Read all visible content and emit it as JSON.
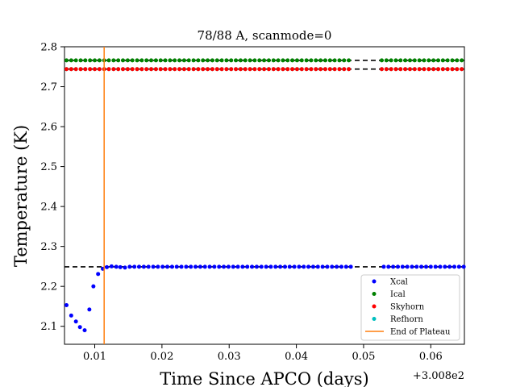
{
  "chart_data": {
    "type": "scatter",
    "title": "78/88 A, scanmode=0",
    "xlabel": "Time Since APCO (days)",
    "ylabel": "Temperature (K)",
    "x_offset_label": "+3.008e2",
    "xlim": [
      0.0055,
      0.065
    ],
    "ylim": [
      2.055,
      2.8
    ],
    "xticks": [
      0.01,
      0.02,
      0.03,
      0.04,
      0.05,
      0.06
    ],
    "xtick_labels": [
      "0.01",
      "0.02",
      "0.03",
      "0.04",
      "0.05",
      "0.06"
    ],
    "yticks": [
      2.1,
      2.2,
      2.3,
      2.4,
      2.5,
      2.6,
      2.7,
      2.8
    ],
    "ytick_labels": [
      "2.1",
      "2.2",
      "2.3",
      "2.4",
      "2.5",
      "2.6",
      "2.7",
      "2.8"
    ],
    "grid": false,
    "legend_position": "lower-right",
    "data_gap": [
      0.0483,
      0.0523
    ],
    "series": [
      {
        "name": "Xcal",
        "color": "#0000ff",
        "early_points": [
          [
            0.0058,
            2.153
          ],
          [
            0.0065,
            2.127
          ],
          [
            0.0072,
            2.112
          ],
          [
            0.0078,
            2.098
          ],
          [
            0.0085,
            2.09
          ],
          [
            0.0092,
            2.142
          ],
          [
            0.0098,
            2.2
          ],
          [
            0.0105,
            2.231
          ],
          [
            0.0112,
            2.244
          ],
          [
            0.0118,
            2.248
          ],
          [
            0.0125,
            2.25
          ],
          [
            0.0132,
            2.249
          ],
          [
            0.0138,
            2.248
          ],
          [
            0.0145,
            2.247
          ]
        ],
        "plateau_start": 0.0152,
        "plateau_end": 0.065,
        "plateau_value": 2.249,
        "step": 0.0007
      },
      {
        "name": "Ical",
        "color": "#008000",
        "plateau_start": 0.0058,
        "plateau_end": 0.065,
        "plateau_value": 2.766,
        "step": 0.0007
      },
      {
        "name": "Skyhorn",
        "color": "#ff0000",
        "plateau_start": 0.0058,
        "plateau_end": 0.065,
        "plateau_value": 2.744,
        "step": 0.0007,
        "excursions": [
          [
            0.0112,
            2.756
          ],
          [
            0.0118,
            2.759
          ],
          [
            0.0125,
            2.758
          ],
          [
            0.0132,
            2.753
          ],
          [
            0.0138,
            2.748
          ],
          [
            0.0145,
            2.741
          ],
          [
            0.0152,
            2.739
          ],
          [
            0.0158,
            2.738
          ],
          [
            0.0165,
            2.739
          ],
          [
            0.0172,
            2.741
          ],
          [
            0.0452,
            2.749
          ],
          [
            0.0458,
            2.748
          ],
          [
            0.0465,
            2.747
          ],
          [
            0.0572,
            2.751
          ],
          [
            0.0578,
            2.753
          ],
          [
            0.0585,
            2.752
          ],
          [
            0.0592,
            2.75
          ],
          [
            0.0598,
            2.744
          ],
          [
            0.0605,
            2.74
          ],
          [
            0.0612,
            2.739
          ]
        ]
      },
      {
        "name": "Refhorn",
        "color": "#00bfbf",
        "plateau_start": 0.0058,
        "plateau_end": 0.065,
        "plateau_value": 2.744,
        "step": 0.0007
      }
    ],
    "reference_lines": [
      {
        "y": 2.249,
        "color": "#000000",
        "style": "dashed"
      },
      {
        "y": 2.766,
        "color": "#000000",
        "style": "dashed"
      },
      {
        "y": 2.744,
        "color": "#000000",
        "style": "dashed"
      }
    ],
    "vertical_line": {
      "name": "End of Plateau",
      "x": 0.0114,
      "color": "#ff7f0e"
    },
    "legend": [
      "Xcal",
      "Ical",
      "Skyhorn",
      "Refhorn",
      "End of Plateau"
    ]
  }
}
